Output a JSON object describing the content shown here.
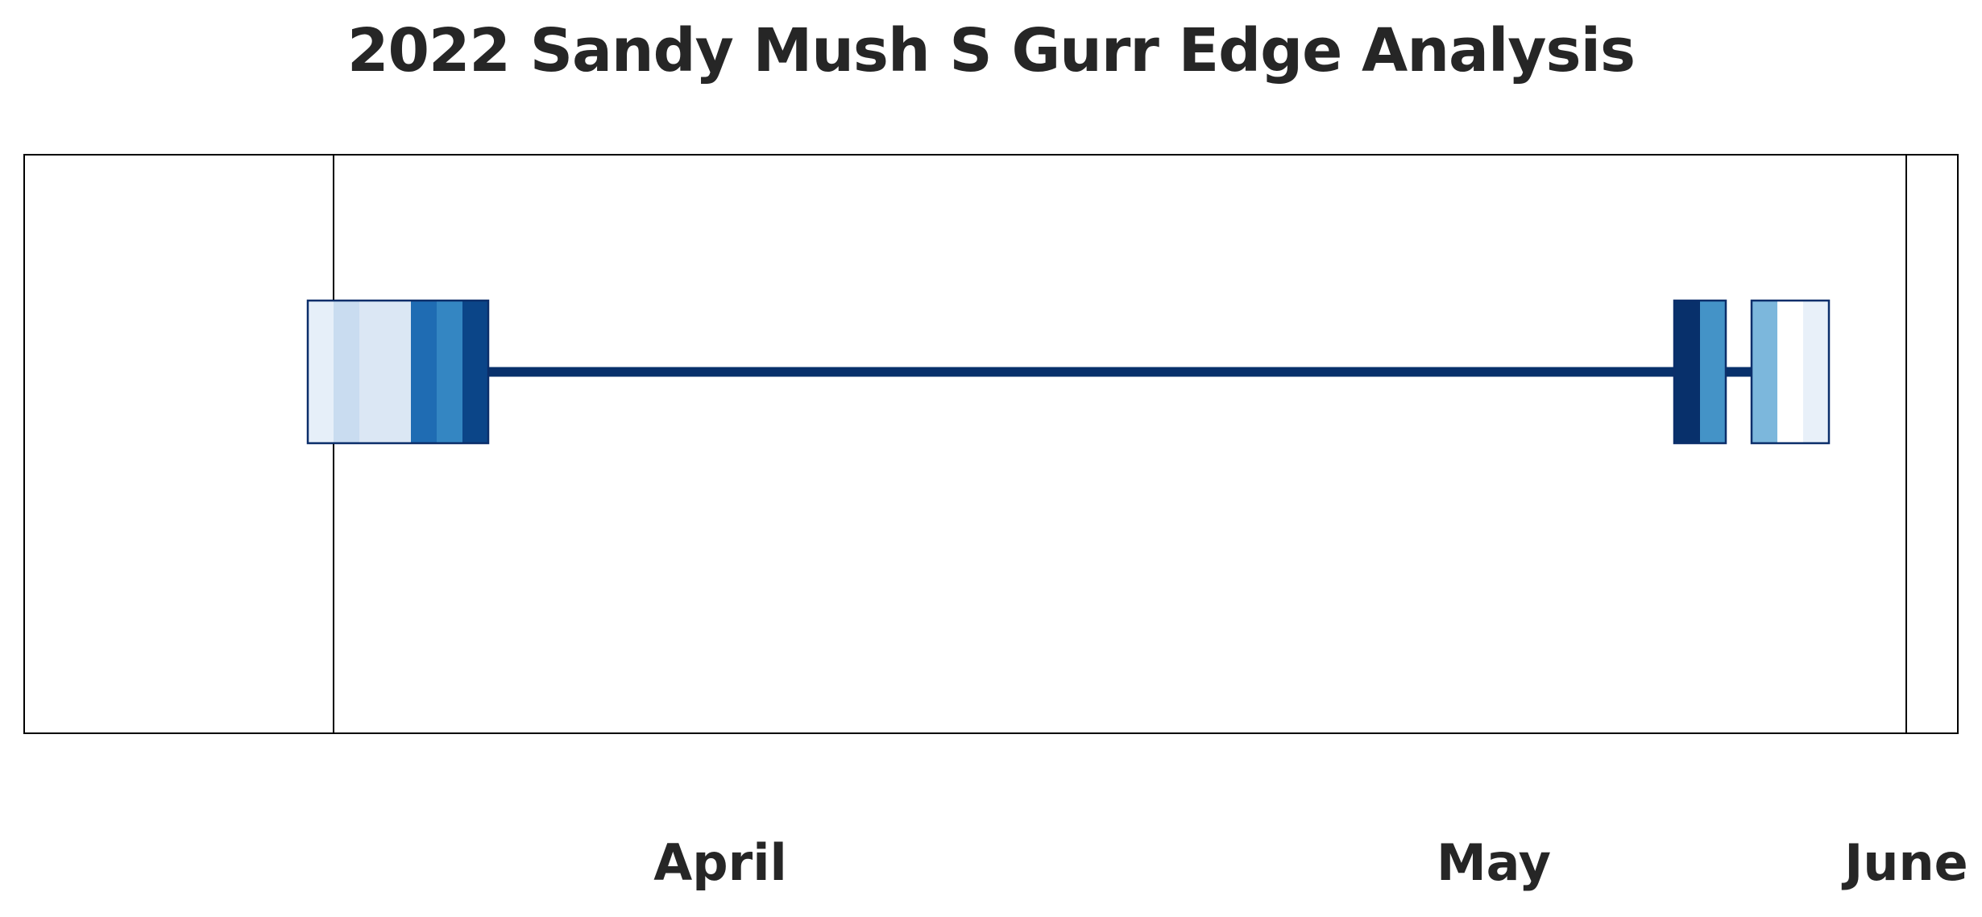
{
  "chart_data": {
    "type": "heatmap",
    "title": "2022 Sandy Mush S Gurr Edge Analysis",
    "x_axis": {
      "type": "date",
      "range": [
        "2022-03-20",
        "2022-06-03"
      ],
      "month_labels": [
        {
          "label": "April",
          "date": "2022-04-16"
        },
        {
          "label": "May",
          "date": "2022-05-16"
        },
        {
          "label": "June",
          "date": "2022-06-01"
        }
      ],
      "month_boundaries": [
        "2022-04-01",
        "2022-06-01"
      ]
    },
    "colormap": "Blues",
    "cells": [
      {
        "date": "2022-03-31",
        "level": 0.1,
        "color": "#e6eff9"
      },
      {
        "date": "2022-04-01",
        "level": 0.22,
        "color": "#c9dcf0"
      },
      {
        "date": "2022-04-02",
        "level": 0.16,
        "color": "#dbe7f4"
      },
      {
        "date": "2022-04-03",
        "level": 0.16,
        "color": "#dbe7f4"
      },
      {
        "date": "2022-04-04",
        "level": 0.8,
        "color": "#1f6cb3"
      },
      {
        "date": "2022-04-05",
        "level": 0.7,
        "color": "#3486c2"
      },
      {
        "date": "2022-04-06",
        "level": 0.92,
        "color": "#0b4588"
      },
      {
        "date": "2022-05-23",
        "level": 1.0,
        "color": "#08306b"
      },
      {
        "date": "2022-05-24",
        "level": 0.62,
        "color": "#4493c7"
      },
      {
        "date": "2022-05-26",
        "level": 0.45,
        "color": "#7cb7dc"
      },
      {
        "date": "2022-05-27",
        "level": 0.0,
        "color": "#ffffff"
      },
      {
        "date": "2022-05-28",
        "level": 0.08,
        "color": "#e8f0f9"
      }
    ],
    "range_line": {
      "start": "2022-04-06",
      "end": "2022-05-27",
      "color": "#08306b"
    },
    "grid": false
  }
}
